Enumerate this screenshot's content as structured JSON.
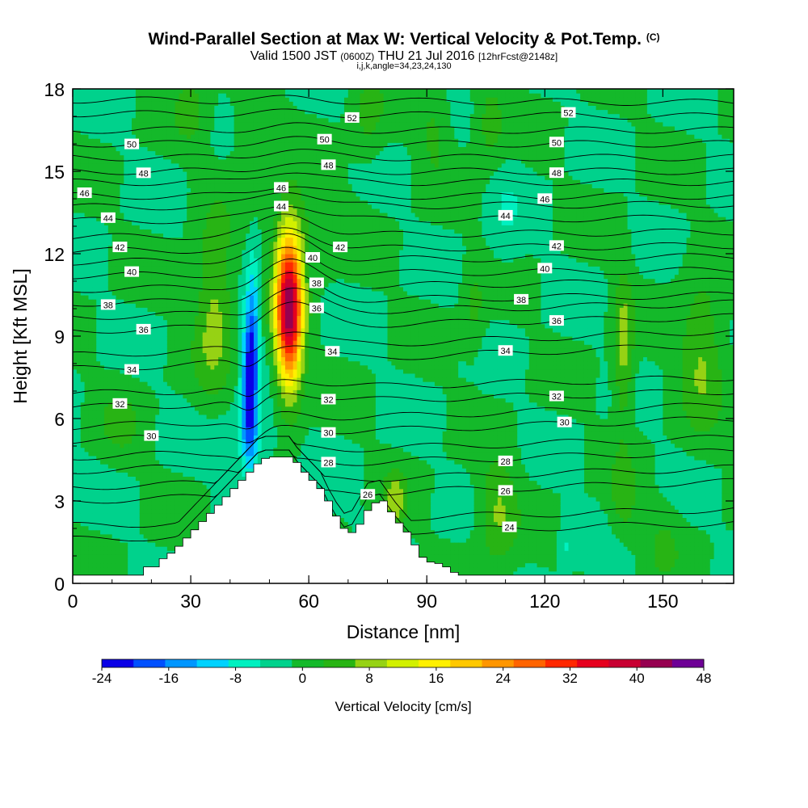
{
  "header": {
    "title": "Wind-Parallel Section at Max W: Vertical Velocity & Pot.Temp.",
    "title_mark": "(C)",
    "subtitle_valid": "Valid 1500 JST",
    "subtitle_utc": "(0600Z)",
    "subtitle_date": "THU 21 Jul 2016",
    "subtitle_fcst": "[12hrFcst@2148z]",
    "indices": "i,j,k,angle=34,23,24,130"
  },
  "chart_data": {
    "type": "heatmap",
    "xlabel": "Distance [nm]",
    "ylabel": "Height [Kft MSL]",
    "xlim": [
      0,
      168
    ],
    "ylim": [
      0,
      18
    ],
    "x_ticks": [
      "0",
      "30",
      "60",
      "90",
      "120",
      "150"
    ],
    "x_tick_values": [
      0,
      30,
      60,
      90,
      120,
      150
    ],
    "y_ticks": [
      "0",
      "3",
      "6",
      "9",
      "12",
      "15",
      "18"
    ],
    "y_tick_values": [
      0,
      3,
      6,
      9,
      12,
      15,
      18
    ],
    "colorbar": {
      "title": "Vertical Velocity [cm/s]",
      "min": -24,
      "max": 48,
      "step": 4,
      "tick_labels": [
        "-24",
        "-16",
        "-8",
        "0",
        "8",
        "16",
        "24",
        "32",
        "40",
        "48"
      ],
      "colors": [
        "#0a00e6",
        "#0050ff",
        "#0096ff",
        "#00d2ff",
        "#00f0c0",
        "#00d28c",
        "#14b92a",
        "#28b414",
        "#96d214",
        "#d2f000",
        "#fff000",
        "#ffc800",
        "#ff9600",
        "#ff6400",
        "#ff2800",
        "#e6001e",
        "#c80032",
        "#960050",
        "#6e0096"
      ]
    },
    "terrain": [
      [
        0,
        0.3
      ],
      [
        16,
        0.3
      ],
      [
        16,
        0.6
      ],
      [
        20,
        0.6
      ],
      [
        22,
        0.9
      ],
      [
        25,
        1.2
      ],
      [
        27,
        1.5
      ],
      [
        29,
        1.8
      ],
      [
        31,
        2.1
      ],
      [
        33,
        2.4
      ],
      [
        35,
        2.7
      ],
      [
        37,
        3.0
      ],
      [
        39,
        3.3
      ],
      [
        41,
        3.6
      ],
      [
        43,
        3.9
      ],
      [
        45,
        4.2
      ],
      [
        47,
        4.5
      ],
      [
        49,
        4.6
      ],
      [
        55,
        4.6
      ],
      [
        57,
        4.2
      ],
      [
        59,
        3.9
      ],
      [
        61,
        3.6
      ],
      [
        63,
        3.3
      ],
      [
        65,
        2.7
      ],
      [
        67,
        2.2
      ],
      [
        69,
        1.8
      ],
      [
        71,
        1.9
      ],
      [
        73,
        2.4
      ],
      [
        75,
        2.9
      ],
      [
        78,
        3.0
      ],
      [
        80,
        2.6
      ],
      [
        82,
        2.2
      ],
      [
        85,
        1.7
      ],
      [
        87,
        1.1
      ],
      [
        89,
        0.8
      ],
      [
        93,
        0.7
      ],
      [
        95,
        0.5
      ],
      [
        97,
        0.3
      ],
      [
        168,
        0.3
      ]
    ],
    "velocity_features": [
      {
        "x": 55,
        "y": 10.0,
        "value": 46,
        "sx": 2.4,
        "sy": 2.0
      },
      {
        "x": 45,
        "y": 7.2,
        "value": -22,
        "sx": 1.4,
        "sy": 2.2
      },
      {
        "x": 46,
        "y": 9.8,
        "value": -7,
        "sx": 1.1,
        "sy": 1.8
      },
      {
        "x": 44,
        "y": 5.3,
        "value": -5,
        "sx": 6.0,
        "sy": 0.8
      },
      {
        "x": 36,
        "y": 10.0,
        "value": 10,
        "sx": 3.5,
        "sy": 2.2
      },
      {
        "x": 108,
        "y": 2.6,
        "value": 9,
        "sx": 3.5,
        "sy": 1.3
      },
      {
        "x": 140,
        "y": 8.5,
        "value": 10,
        "sx": 1.8,
        "sy": 2.0
      },
      {
        "x": 160,
        "y": 8.4,
        "value": 9,
        "sx": 4.0,
        "sy": 1.8
      },
      {
        "x": 140,
        "y": 3.0,
        "value": 6,
        "sx": 2.5,
        "sy": 1.0
      },
      {
        "x": 82,
        "y": 3.0,
        "value": 10,
        "sx": 2.0,
        "sy": 0.7
      },
      {
        "x": 102,
        "y": 10.0,
        "value": 5,
        "sx": 2.0,
        "sy": 1.2
      },
      {
        "x": 92,
        "y": 16.5,
        "value": 5,
        "sx": 3.0,
        "sy": 1.2
      },
      {
        "x": 106,
        "y": 16.8,
        "value": 6,
        "sx": 3.0,
        "sy": 1.2
      },
      {
        "x": 75,
        "y": 17.0,
        "value": 5,
        "sx": 3.0,
        "sy": 1.2
      },
      {
        "x": 45,
        "y": 16.0,
        "value": 5,
        "sx": 3.0,
        "sy": 1.2
      },
      {
        "x": 60,
        "y": 13.0,
        "value": 4,
        "sx": 6.0,
        "sy": 1.0
      },
      {
        "x": 12,
        "y": 5.8,
        "value": 4,
        "sx": 4.0,
        "sy": 1.0
      },
      {
        "x": 30,
        "y": 17.3,
        "value": 5,
        "sx": 3.0,
        "sy": 1.0
      },
      {
        "x": 110,
        "y": 13.5,
        "value": -3,
        "sx": 3.0,
        "sy": 1.5
      },
      {
        "x": 125,
        "y": 1.4,
        "value": -5,
        "sx": 1.0,
        "sy": 0.8
      },
      {
        "x": 150,
        "y": 1.4,
        "value": 4,
        "sx": 3.0,
        "sy": 1.0
      }
    ],
    "isentropes": [
      {
        "label": "24",
        "left": 1.6,
        "right": 2.2,
        "labels_at": [
          111
        ]
      },
      {
        "label": "26",
        "left": 3.0,
        "right": 3.7,
        "labels_at": [
          75,
          110
        ]
      },
      {
        "label": "28",
        "left": 4.1,
        "right": 4.8,
        "labels_at": [
          65,
          110
        ]
      },
      {
        "label": "30",
        "left": 5.2,
        "right": 6.0,
        "labels_at": [
          20,
          65,
          125
        ]
      },
      {
        "label": "32",
        "left": 6.4,
        "right": 7.0,
        "labels_at": [
          12,
          65,
          123
        ]
      },
      {
        "label": "34",
        "left": 7.8,
        "right": 8.7,
        "labels_at": [
          15,
          66,
          110
        ]
      },
      {
        "label": "36",
        "left": 9.2,
        "right": 9.7,
        "labels_at": [
          18,
          62,
          123
        ]
      },
      {
        "label": "38",
        "left": 10.2,
        "right": 10.5,
        "labels_at": [
          9,
          62,
          114
        ]
      },
      {
        "label": "40",
        "left": 11.2,
        "right": 11.4,
        "labels_at": [
          15,
          61,
          120
        ]
      },
      {
        "label": "42",
        "left": 12.1,
        "right": 12.3,
        "labels_at": [
          12,
          68,
          123
        ]
      },
      {
        "label": "44",
        "left": 13.2,
        "right": 13.3,
        "labels_at": [
          9,
          53,
          110
        ]
      },
      {
        "label": "46",
        "left": 14.1,
        "right": 14.1,
        "labels_at": [
          3,
          53,
          120
        ]
      },
      {
        "label": "48",
        "left": 15.0,
        "right": 15.0,
        "labels_at": [
          18,
          65,
          123
        ]
      },
      {
        "label": "50",
        "left": 16.0,
        "right": 16.0,
        "labels_at": [
          15,
          64,
          123
        ]
      },
      {
        "label": "52",
        "left": 17.1,
        "right": 17.0,
        "labels_at": [
          71,
          126
        ]
      }
    ]
  }
}
